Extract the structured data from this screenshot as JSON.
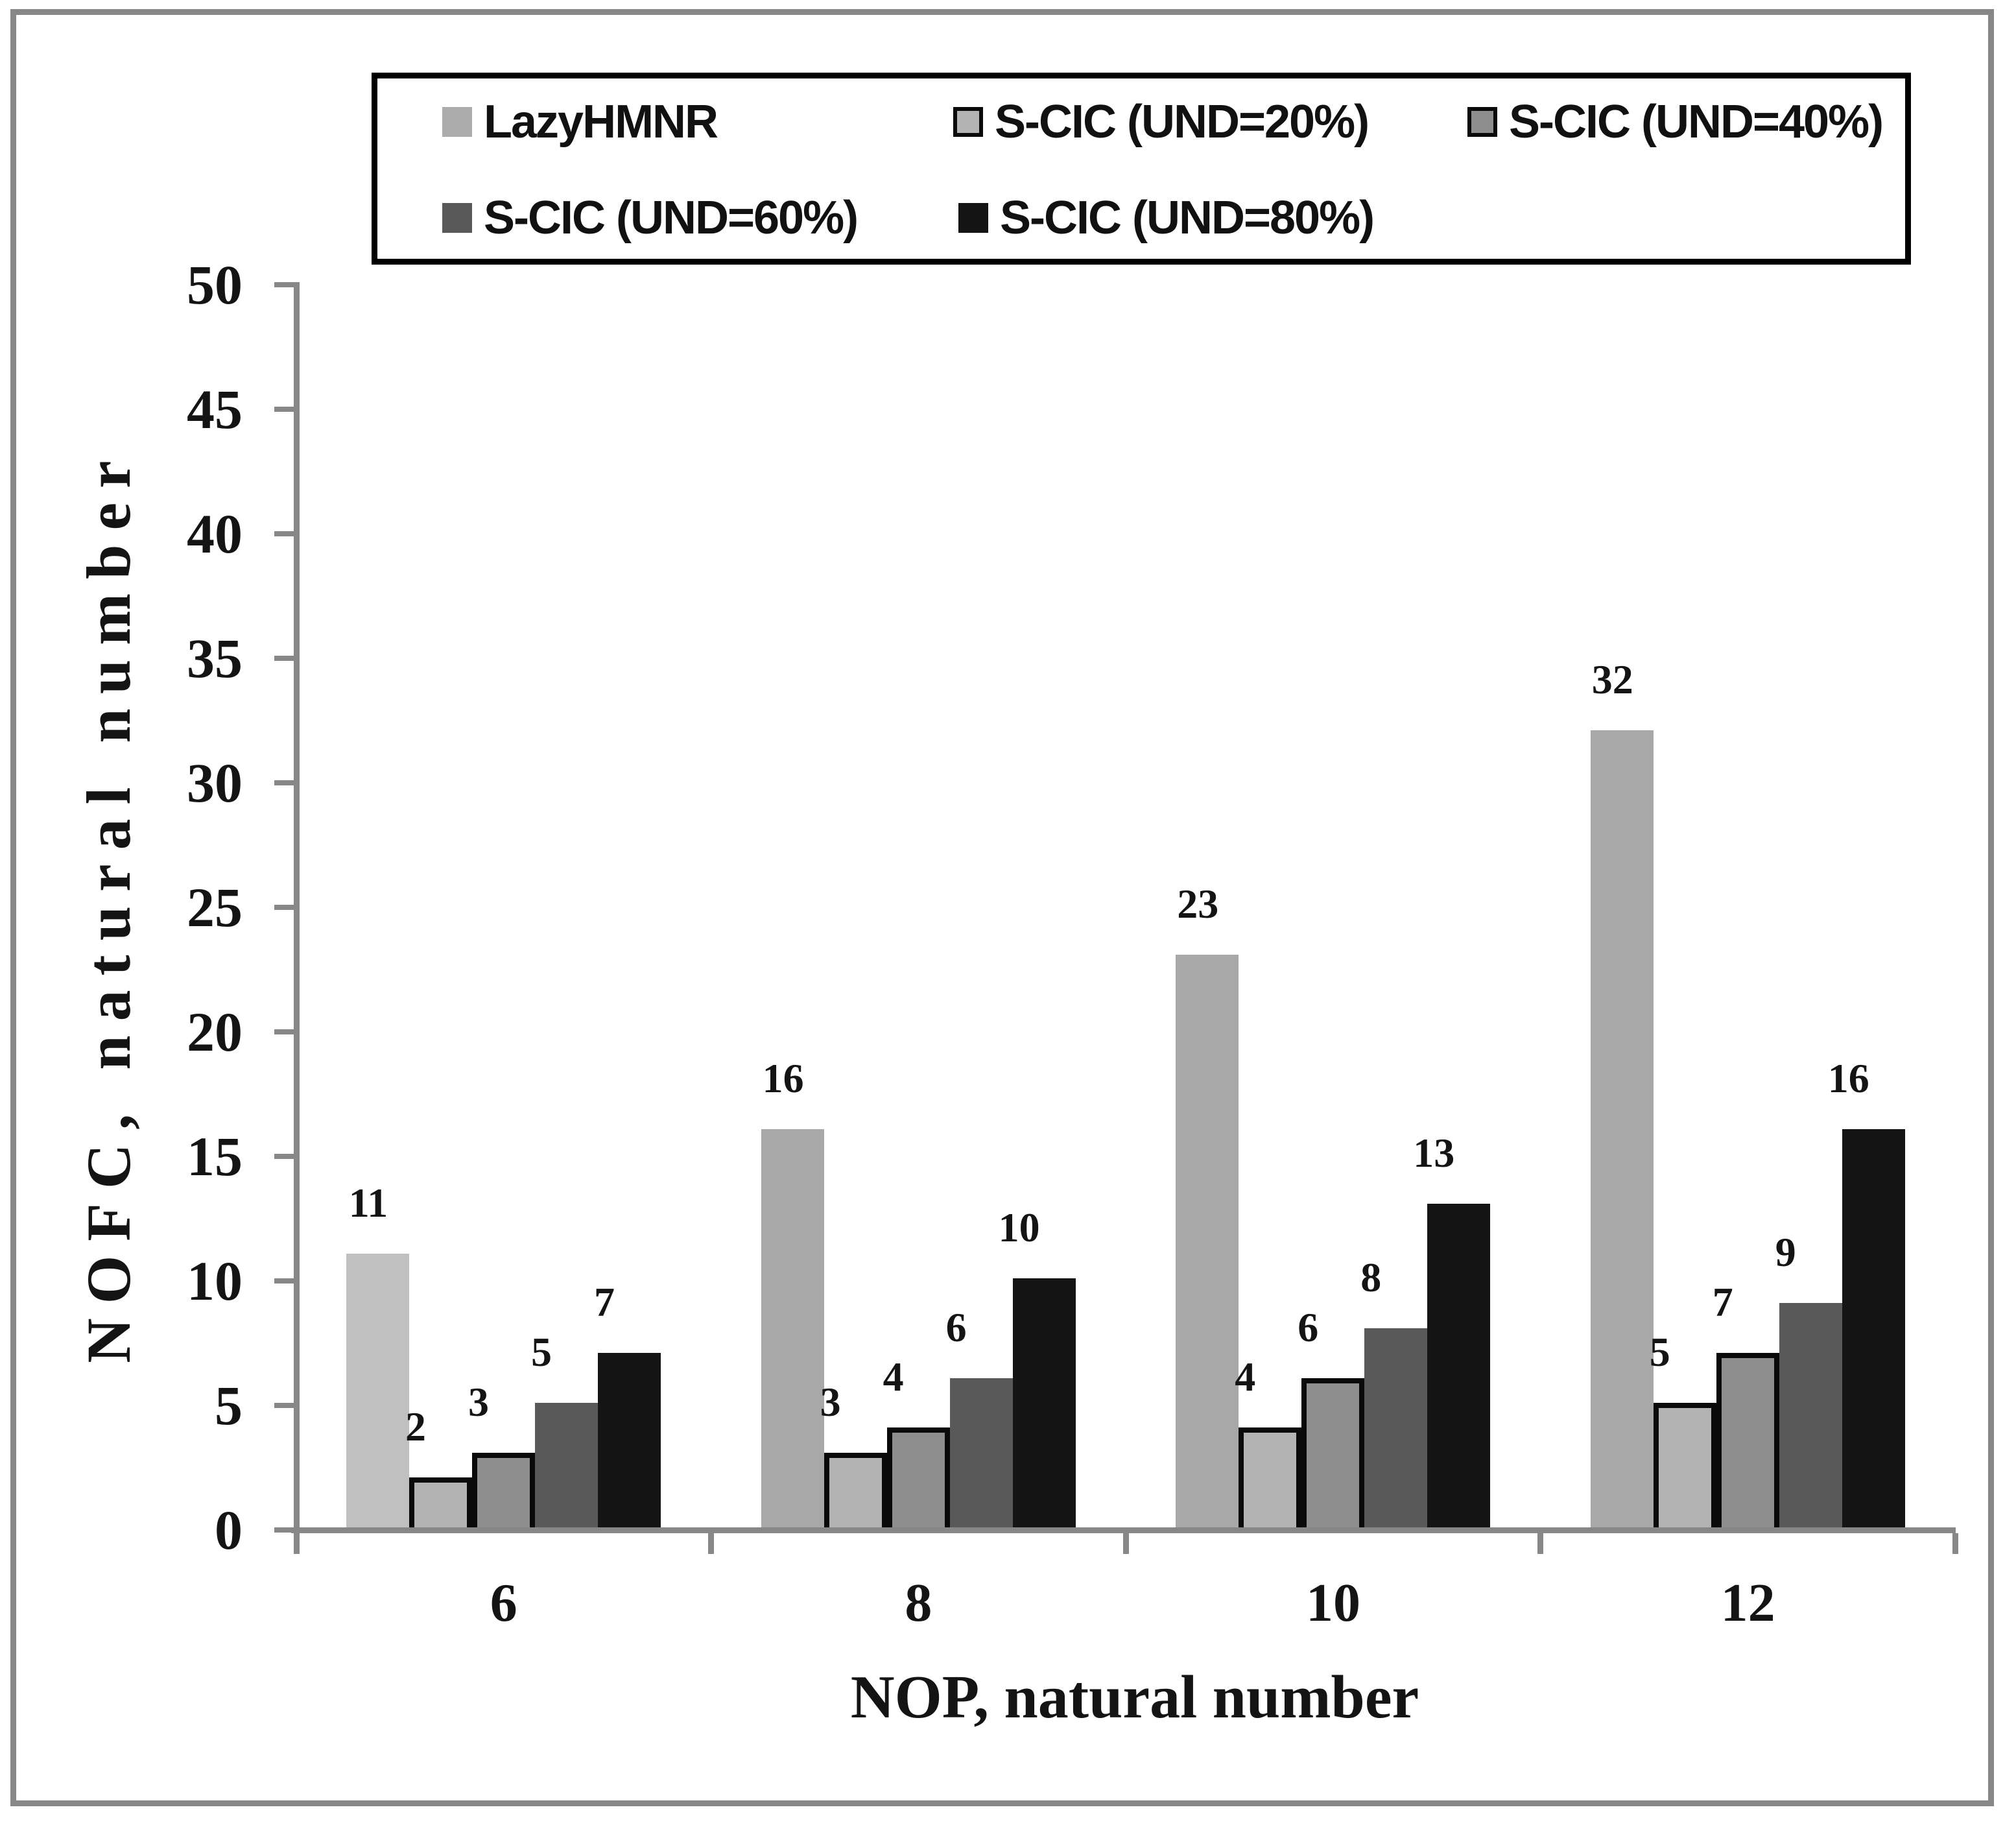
{
  "figure": {
    "frame_color": "#878787",
    "background": "#ffffff",
    "axis_color": "#878787",
    "text_color": "#141414",
    "legend_border_color": "#000000"
  },
  "chart_data": {
    "type": "bar",
    "title": "",
    "xlabel": "NOP, natural number",
    "ylabel": "NOFC, natural number",
    "categories": [
      "6",
      "8",
      "10",
      "12"
    ],
    "series": [
      {
        "name": "LazyHMNR",
        "values": [
          11,
          16,
          23,
          32
        ],
        "color": "#a8a8a8",
        "group_colors": [
          "#c0c0c0",
          "#a8a8a8",
          "#a8a8a8",
          "#a8a8a8"
        ],
        "border_color": null,
        "legend_color": "#ababab"
      },
      {
        "name": "S-CIC (UND=20%)",
        "values": [
          2,
          3,
          4,
          5
        ],
        "color": "#b3b3b3",
        "border_color": "#0a0a0a"
      },
      {
        "name": "S-CIC (UND=40%)",
        "values": [
          3,
          4,
          6,
          7
        ],
        "color": "#8e8e8e",
        "border_color": "#0a0a0a"
      },
      {
        "name": "S-CIC (UND=60%)",
        "values": [
          5,
          6,
          8,
          9
        ],
        "color": "#595959",
        "border_color": null
      },
      {
        "name": "S-CIC (UND=80%)",
        "values": [
          7,
          10,
          13,
          16
        ],
        "color": "#141414",
        "border_color": null
      }
    ],
    "ylim": [
      0,
      50
    ],
    "ytick_step": 5,
    "grid": false,
    "legend_position": "top",
    "bar_value_labels": true
  }
}
